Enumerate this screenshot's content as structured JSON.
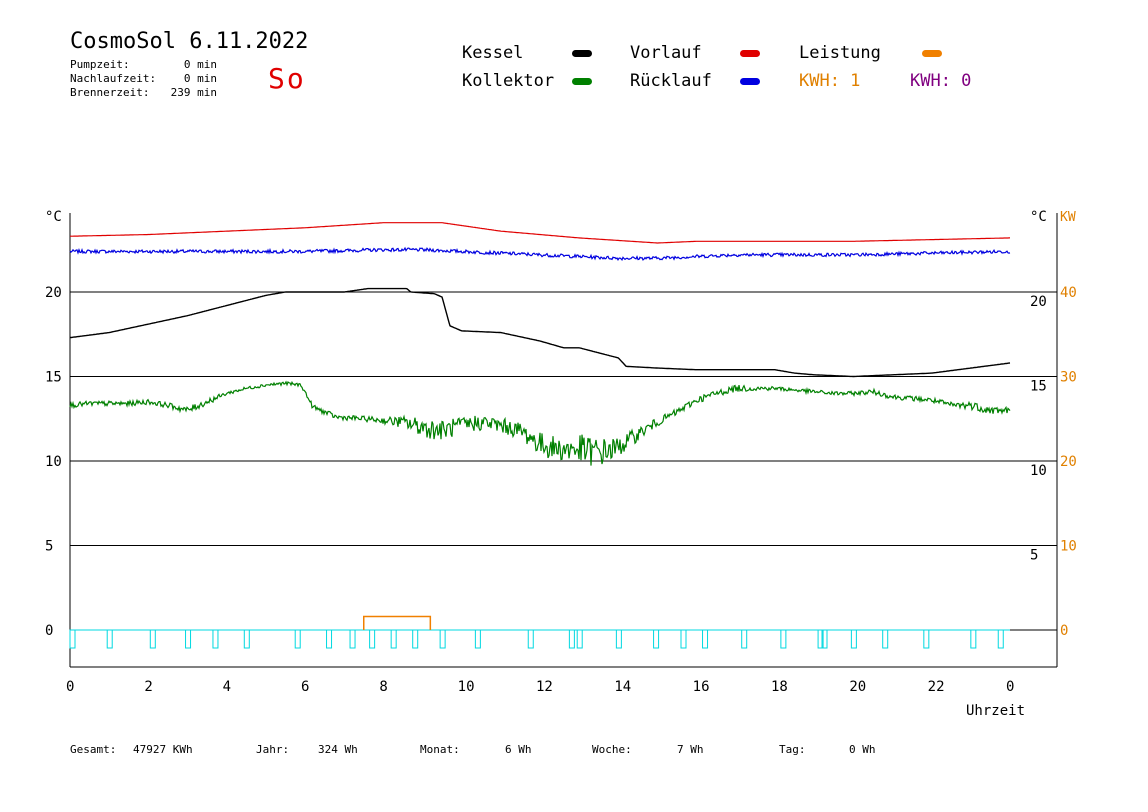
{
  "header": {
    "title": "CosmoSol 6.11.2022",
    "day": "So",
    "stats": [
      {
        "label": "Pumpzeit:",
        "value": "0 min"
      },
      {
        "label": "Nachlaufzeit:",
        "value": "0 min"
      },
      {
        "label": "Brennerzeit:",
        "value": "239 min"
      }
    ]
  },
  "legend": {
    "kessel": {
      "label": "Kessel",
      "color": "#000000"
    },
    "vorlauf": {
      "label": "Vorlauf",
      "color": "#e00000"
    },
    "leistung": {
      "label": "Leistung",
      "color": "#f08000"
    },
    "kollektor": {
      "label": "Kollektor",
      "color": "#008000"
    },
    "ruecklauf": {
      "label": "Rücklauf",
      "color": "#0000e0"
    },
    "kwh1": {
      "label": "KWH: 1",
      "color": "#e08000"
    },
    "kwh2": {
      "label": "KWH: 0",
      "color": "#800080"
    }
  },
  "footer": [
    {
      "label": "Gesamt:",
      "value": "47927 KWh"
    },
    {
      "label": "Jahr:",
      "value": "324 Wh"
    },
    {
      "label": "Monat:",
      "value": "6 Wh"
    },
    {
      "label": "Woche:",
      "value": "7 Wh"
    },
    {
      "label": "Tag:",
      "value": "0 Wh"
    }
  ],
  "chart_data": {
    "type": "line",
    "xlabel": "Uhrzeit",
    "ylabel_left": "°C",
    "ylabel_right": "°C",
    "ylabel_power": "KW",
    "x_ticks": [
      "0",
      "2",
      "4",
      "6",
      "8",
      "10",
      "12",
      "14",
      "16",
      "18",
      "20",
      "22",
      "0"
    ],
    "left_ticks": [
      {
        "v": 20,
        "label": "20"
      },
      {
        "v": 15,
        "label": "15"
      },
      {
        "v": 10,
        "label": "10"
      },
      {
        "v": 5,
        "label": "5"
      },
      {
        "v": 0,
        "label": "0"
      }
    ],
    "right_ticks": [
      {
        "v": 20,
        "label": "20"
      },
      {
        "v": 15,
        "label": "15"
      },
      {
        "v": 10,
        "label": "10"
      },
      {
        "v": 5,
        "label": "5"
      }
    ],
    "power_ticks": [
      {
        "v": 20,
        "label": "40"
      },
      {
        "v": 15,
        "label": "30"
      },
      {
        "v": 10,
        "label": "20"
      },
      {
        "v": 5,
        "label": "10"
      },
      {
        "v": 0,
        "label": "0"
      }
    ],
    "xlim": [
      0,
      24
    ],
    "ylim": [
      -2,
      25
    ],
    "series": [
      {
        "name": "Vorlauf",
        "color": "#e00000",
        "x": [
          0,
          2,
          4,
          6,
          8,
          9.5,
          11,
          13,
          15,
          16,
          18,
          20,
          22,
          24
        ],
        "y": [
          23.3,
          23.4,
          23.6,
          23.8,
          24.1,
          24.1,
          23.6,
          23.2,
          22.9,
          23.0,
          23.0,
          23.0,
          23.1,
          23.2
        ]
      },
      {
        "name": "Rücklauf",
        "color": "#0000e0",
        "x": [
          0,
          2,
          4,
          6,
          8,
          9,
          10,
          11,
          12,
          13,
          14,
          15,
          16,
          17,
          18,
          20,
          22,
          24
        ],
        "y": [
          22.4,
          22.4,
          22.4,
          22.4,
          22.5,
          22.5,
          22.4,
          22.3,
          22.2,
          22.1,
          22.0,
          22.0,
          22.1,
          22.2,
          22.2,
          22.2,
          22.3,
          22.4
        ],
        "noise": 0.1
      },
      {
        "name": "Kessel",
        "color": "#000000",
        "x": [
          0,
          1,
          2,
          3,
          4,
          5,
          5.5,
          7,
          7.6,
          8.6,
          8.7,
          9.3,
          9.5,
          9.7,
          10,
          11,
          12,
          12.6,
          13,
          14,
          14.2,
          15,
          16,
          17,
          17.5,
          18,
          18.5,
          19,
          20,
          21,
          22,
          23,
          24
        ],
        "y": [
          17.3,
          17.6,
          18.1,
          18.6,
          19.2,
          19.8,
          20.0,
          20.0,
          20.2,
          20.2,
          20.0,
          19.9,
          19.7,
          18.0,
          17.7,
          17.6,
          17.1,
          16.7,
          16.7,
          16.1,
          15.6,
          15.5,
          15.4,
          15.4,
          15.4,
          15.4,
          15.2,
          15.1,
          15.0,
          15.1,
          15.2,
          15.5,
          15.8
        ]
      },
      {
        "name": "Kollektor",
        "color": "#008000",
        "x": [
          0,
          0.5,
          1,
          1.5,
          2,
          2.5,
          3,
          3.5,
          4,
          4.5,
          5,
          5.5,
          5.9,
          6.2,
          6.8,
          7.5,
          8,
          8.5,
          9,
          9.5,
          10,
          10.5,
          11,
          11.5,
          12,
          12.5,
          13,
          13.5,
          14,
          14.5,
          15,
          15.5,
          16,
          16.5,
          17,
          17.5,
          18,
          18.5,
          19,
          19.5,
          20,
          20.5,
          21,
          21.5,
          22,
          22.5,
          23,
          23.5,
          24
        ],
        "y": [
          13.3,
          13.4,
          13.4,
          13.4,
          13.5,
          13.3,
          13.0,
          13.5,
          14.0,
          14.3,
          14.5,
          14.6,
          14.5,
          13.2,
          12.6,
          12.5,
          12.4,
          12.3,
          12.0,
          11.8,
          12.1,
          12.3,
          12.1,
          11.8,
          11.0,
          10.7,
          10.7,
          10.5,
          10.8,
          11.6,
          12.3,
          12.9,
          13.6,
          14.0,
          14.3,
          14.3,
          14.3,
          14.2,
          14.1,
          14.0,
          14.0,
          14.1,
          13.8,
          13.7,
          13.6,
          13.3,
          13.3,
          13.0,
          13.0
        ],
        "noise": [
          0.15,
          0.15,
          0.15,
          0.15,
          0.15,
          0.15,
          0.2,
          0.2,
          0.1,
          0.1,
          0.1,
          0.1,
          0.1,
          0.15,
          0.15,
          0.15,
          0.2,
          0.35,
          0.6,
          0.6,
          0.5,
          0.5,
          0.45,
          0.5,
          0.7,
          0.7,
          0.9,
          0.9,
          0.6,
          0.4,
          0.25,
          0.2,
          0.2,
          0.2,
          0.2,
          0.15,
          0.12,
          0.12,
          0.12,
          0.12,
          0.12,
          0.15,
          0.15,
          0.15,
          0.15,
          0.2,
          0.25,
          0.25,
          0.2
        ]
      }
    ],
    "pump_events": [
      0,
      0.95,
      2.05,
      2.95,
      3.65,
      4.45,
      5.75,
      6.55,
      7.15,
      7.65,
      8.2,
      8.75,
      9.45,
      10.35,
      11.7,
      12.75,
      12.95,
      13.95,
      14.9,
      15.6,
      16.15,
      17.15,
      18.15,
      19.1,
      19.2,
      19.95,
      20.75,
      21.8,
      23.0,
      23.7
    ],
    "power": {
      "color": "#f08000",
      "start": 7.5,
      "end": 9.2,
      "level": 0.8
    },
    "grid": true
  }
}
